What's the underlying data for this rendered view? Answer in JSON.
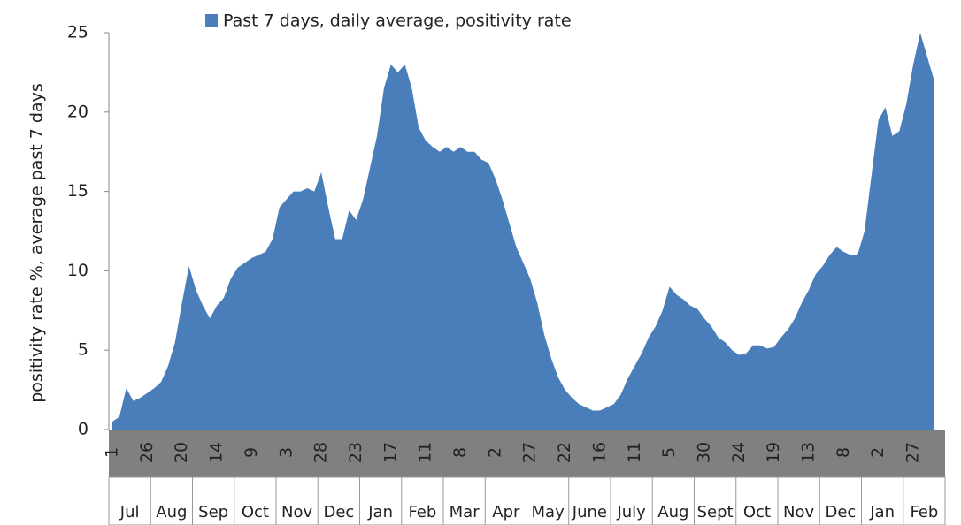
{
  "chart_data": {
    "type": "area",
    "y_label": "positivity rate %, average past 7 days",
    "categories": [
      "1",
      null,
      null,
      null,
      null,
      "26",
      null,
      null,
      null,
      null,
      "20",
      null,
      null,
      null,
      null,
      "14",
      null,
      null,
      null,
      null,
      "9",
      null,
      null,
      null,
      null,
      "3",
      null,
      null,
      null,
      null,
      "28",
      null,
      null,
      null,
      null,
      "23",
      null,
      null,
      null,
      null,
      "17",
      null,
      null,
      null,
      null,
      "11",
      null,
      null,
      null,
      null,
      "8",
      null,
      null,
      null,
      null,
      "2",
      null,
      null,
      null,
      null,
      "27",
      null,
      null,
      null,
      null,
      "22",
      null,
      null,
      null,
      null,
      "16",
      null,
      null,
      null,
      null,
      "11",
      null,
      null,
      null,
      null,
      "5",
      null,
      null,
      null,
      null,
      "30",
      null,
      null,
      null,
      null,
      "24",
      null,
      null,
      null,
      null,
      "19",
      null,
      null,
      null,
      null,
      "13",
      null,
      null,
      null,
      null,
      "8",
      null,
      null,
      null,
      null,
      "2",
      null,
      null,
      null,
      null,
      "27",
      null,
      null,
      null
    ],
    "months": [
      "Jul",
      "Aug",
      "Sep",
      "Oct",
      "Nov",
      "Dec",
      "Jan",
      "Feb",
      "Mar",
      "Apr",
      "May",
      "June",
      "July",
      "Aug",
      "Sept",
      "Oct",
      "Nov",
      "Dec",
      "Jan",
      "Feb"
    ],
    "series": [
      {
        "name": "Past 7 days, daily average, positivity rate",
        "color": "#4a7ebb",
        "values": [
          0.5,
          0.8,
          2.6,
          1.8,
          2.0,
          2.3,
          2.6,
          3.0,
          4.0,
          5.5,
          8.0,
          10.3,
          8.8,
          7.8,
          7.0,
          7.8,
          8.3,
          9.5,
          10.2,
          10.5,
          10.8,
          11.0,
          11.2,
          12.0,
          14.0,
          14.5,
          15.0,
          15.0,
          15.2,
          15.0,
          16.2,
          14.0,
          12.0,
          12.0,
          13.8,
          13.2,
          14.5,
          16.5,
          18.5,
          21.5,
          23.0,
          22.5,
          23.0,
          21.5,
          19.0,
          18.2,
          17.8,
          17.5,
          17.8,
          17.5,
          17.8,
          17.5,
          17.5,
          17.0,
          16.8,
          15.8,
          14.5,
          13.0,
          11.5,
          10.5,
          9.5,
          8.0,
          6.0,
          4.5,
          3.3,
          2.5,
          2.0,
          1.6,
          1.4,
          1.2,
          1.2,
          1.4,
          1.6,
          2.2,
          3.2,
          4.0,
          4.8,
          5.8,
          6.5,
          7.5,
          9.0,
          8.5,
          8.2,
          7.8,
          7.6,
          7.0,
          6.5,
          5.8,
          5.5,
          5.0,
          4.7,
          4.8,
          5.3,
          5.3,
          5.1,
          5.2,
          5.8,
          6.3,
          7.0,
          8.0,
          8.8,
          9.8,
          10.3,
          11.0,
          11.5,
          11.2,
          11.0,
          11.0,
          12.5,
          16.0,
          19.5,
          20.3,
          18.5,
          18.8,
          20.5,
          23.0,
          25.0,
          23.5,
          22.0
        ]
      }
    ],
    "ylim": [
      0,
      25
    ],
    "yticks": [
      0,
      5,
      10,
      15,
      20,
      25
    ],
    "grid": false
  }
}
